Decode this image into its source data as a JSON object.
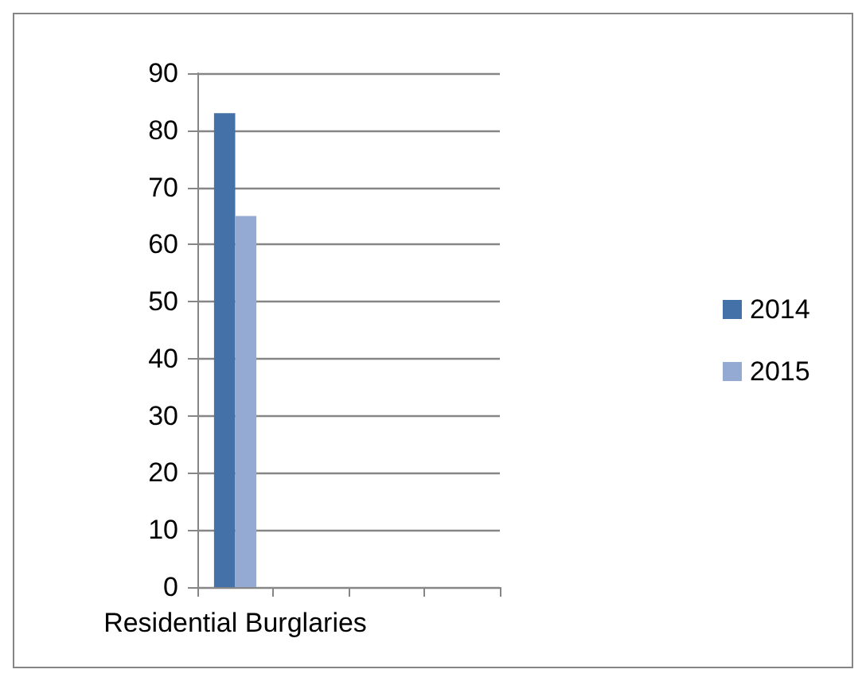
{
  "chart_data": {
    "type": "bar",
    "categories": [
      "Residential Burglaries",
      null,
      null,
      null
    ],
    "series": [
      {
        "name": "2014",
        "color": "#4471a7",
        "values": [
          83,
          null,
          null,
          null
        ]
      },
      {
        "name": "2015",
        "color": "#95aad3",
        "values": [
          65,
          null,
          null,
          null
        ]
      }
    ],
    "ylim": [
      0,
      90
    ],
    "yticks": [
      0,
      10,
      20,
      30,
      40,
      50,
      60,
      70,
      80,
      90
    ],
    "grid": "y",
    "legend": "right"
  }
}
